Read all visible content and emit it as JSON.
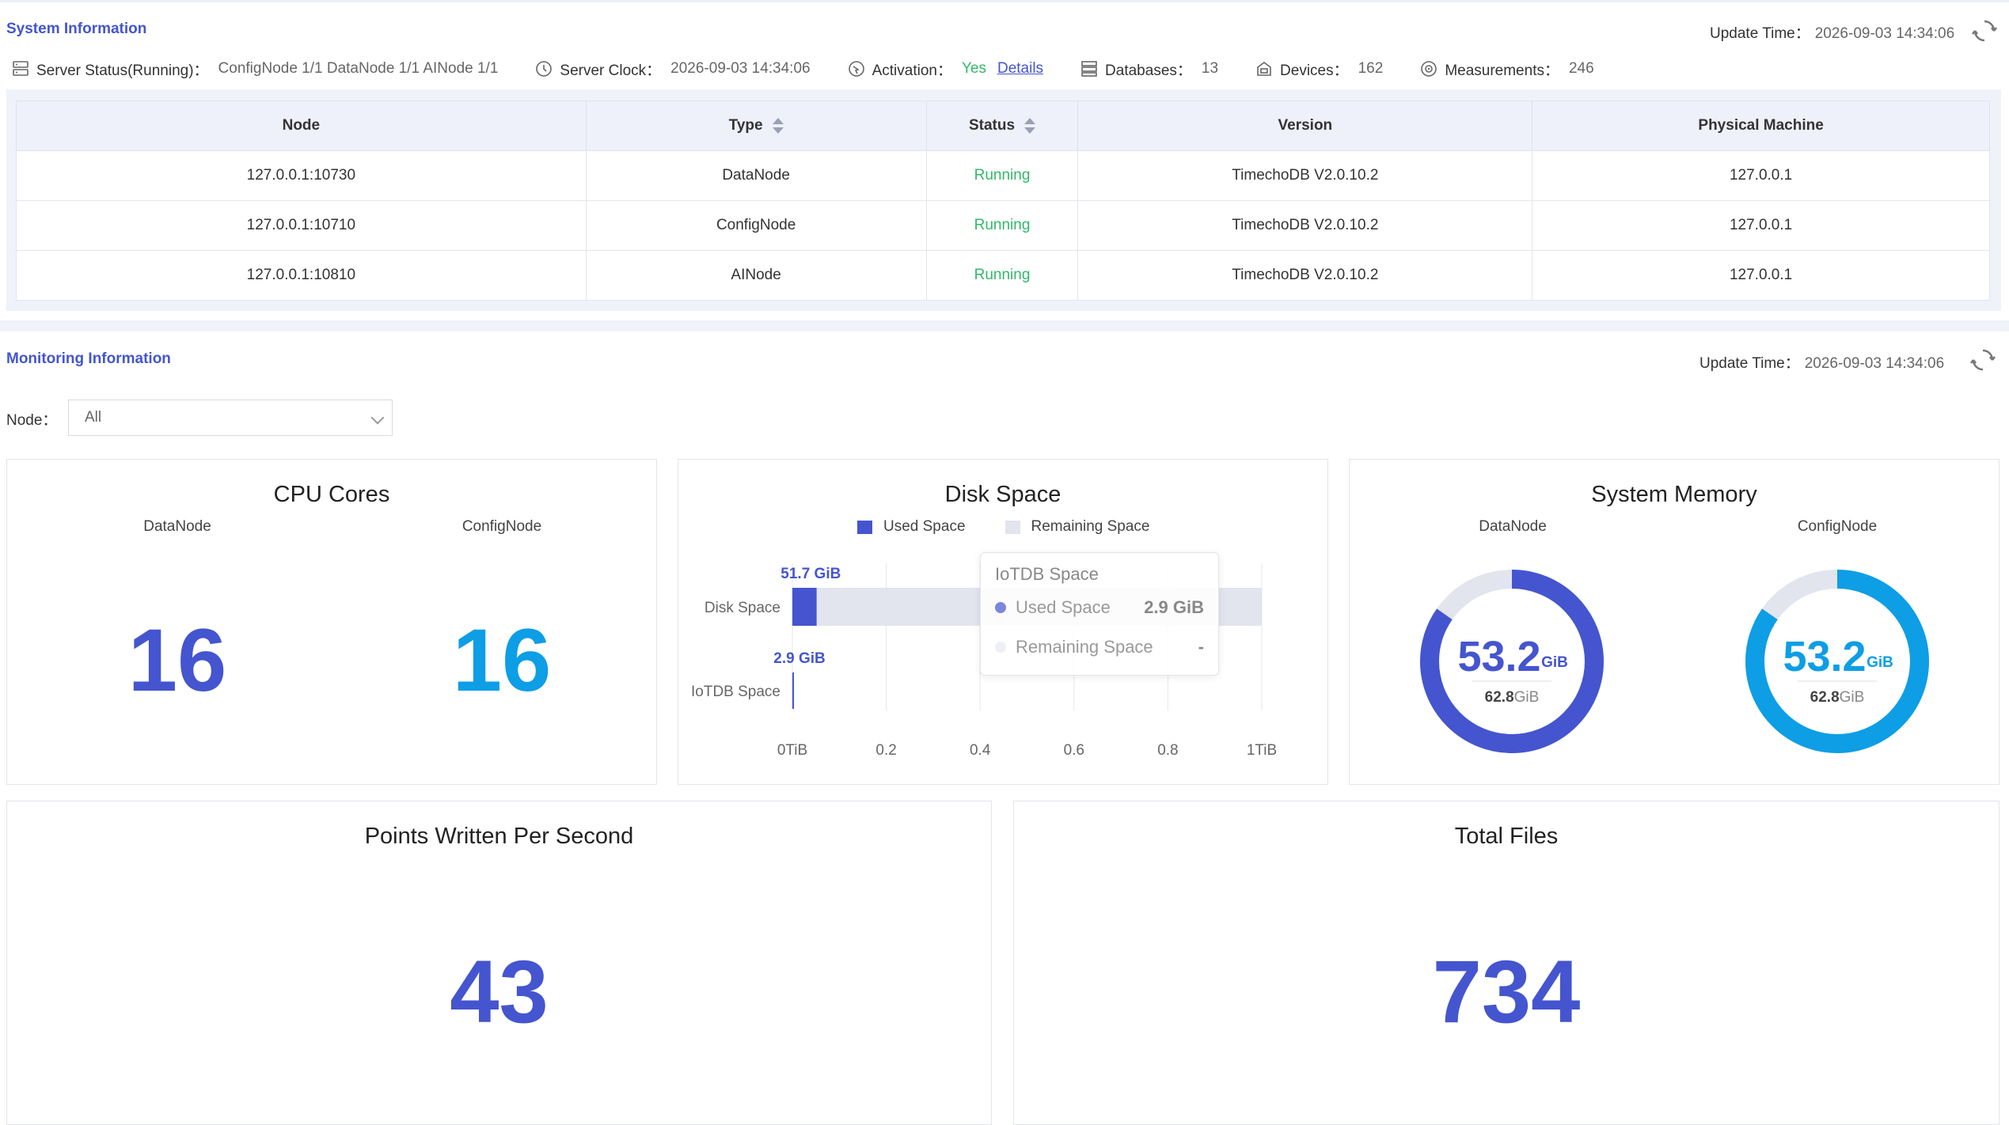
{
  "system_info": {
    "title": "System Information",
    "update_label": "Update Time：",
    "update_time": "2026-09-03 14:34:06",
    "status_bar": {
      "server_status_label": "Server Status(Running)：",
      "server_status_value": "ConfigNode 1/1 DataNode 1/1 AINode 1/1",
      "clock_label": "Server Clock：",
      "clock_value": "2026-09-03 14:34:06",
      "activation_label": "Activation：",
      "activation_value": "Yes",
      "details_link": "Details",
      "databases_label": "Databases：",
      "databases_value": "13",
      "devices_label": "Devices：",
      "devices_value": "162",
      "measurements_label": "Measurements：",
      "measurements_value": "246"
    },
    "table": {
      "headers": [
        "Node",
        "Type",
        "Status",
        "Version",
        "Physical Machine"
      ],
      "rows": [
        {
          "node": "127.0.0.1:10730",
          "type": "DataNode",
          "status": "Running",
          "version": "TimechoDB V2.0.10.2",
          "machine": "127.0.0.1"
        },
        {
          "node": "127.0.0.1:10710",
          "type": "ConfigNode",
          "status": "Running",
          "version": "TimechoDB V2.0.10.2",
          "machine": "127.0.0.1"
        },
        {
          "node": "127.0.0.1:10810",
          "type": "AINode",
          "status": "Running",
          "version": "TimechoDB V2.0.10.2",
          "machine": "127.0.0.1"
        }
      ]
    }
  },
  "monitoring": {
    "title": "Monitoring Information",
    "update_label": "Update Time：",
    "update_time": "2026-09-03 14:34:06",
    "node_filter_label": "Node：",
    "node_filter_value": "All",
    "cpu": {
      "title": "CPU Cores",
      "datanode_label": "DataNode",
      "datanode_value": "16",
      "confignode_label": "ConfigNode",
      "confignode_value": "16"
    },
    "disk": {
      "title": "Disk Space",
      "legend_used": "Used Space",
      "legend_remaining": "Remaining Space",
      "tooltip": {
        "title": "IoTDB Space",
        "used_label": "Used Space",
        "used_value": "2.9 GiB",
        "remaining_label": "Remaining Space",
        "remaining_value": "-"
      }
    },
    "memory": {
      "title": "System Memory",
      "datanode_label": "DataNode",
      "confignode_label": "ConfigNode",
      "datanode_used": "53.2",
      "datanode_total": "62.8",
      "confignode_used": "53.2",
      "confignode_total": "62.8",
      "unit": "GiB"
    },
    "points": {
      "title": "Points Written Per Second",
      "value": "43"
    },
    "files": {
      "title": "Total Files",
      "value": "734"
    }
  },
  "colors": {
    "accent": "#4455cf",
    "cyan": "#0d9ee6",
    "green": "#33b86a",
    "remaining": "#e2e4ee"
  },
  "chart_data": [
    {
      "type": "bar",
      "orientation": "horizontal",
      "stacked": true,
      "title": "Disk Space",
      "categories": [
        "Disk Space",
        "IoTDB Space"
      ],
      "series": [
        {
          "name": "Used Space",
          "values": [
            51.7,
            2.9
          ],
          "labels": [
            "51.7 GiB",
            "2.9 GiB"
          ]
        },
        {
          "name": "Remaining Space",
          "values": [
            948.3,
            null
          ]
        }
      ],
      "unit": "GiB",
      "xlim": [
        0,
        1000
      ],
      "xticks": [
        "0TiB",
        "0.2",
        "0.4",
        "0.6",
        "0.8",
        "1TiB"
      ],
      "legend": "top-center",
      "grid": true
    },
    {
      "type": "pie",
      "title": "System Memory - DataNode",
      "used": 53.2,
      "total": 62.8,
      "unit": "GiB"
    },
    {
      "type": "pie",
      "title": "System Memory - ConfigNode",
      "used": 53.2,
      "total": 62.8,
      "unit": "GiB"
    }
  ]
}
